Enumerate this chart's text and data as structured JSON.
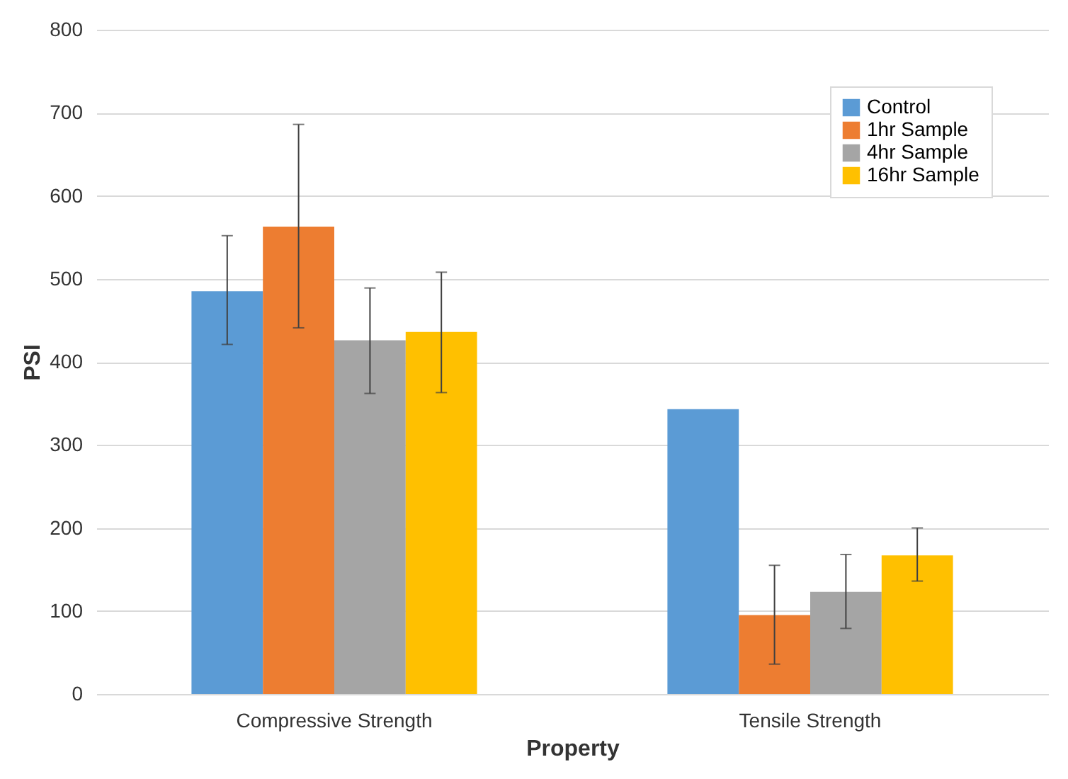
{
  "chart_data": {
    "type": "bar",
    "xlabel": "Property",
    "ylabel": "PSI",
    "categories": [
      "Compressive Strength",
      "Tensile Strength"
    ],
    "series": [
      {
        "name": "Control",
        "color": "#5b9bd5",
        "values": [
          485,
          343
        ],
        "errors": [
          [
            421,
            552
          ],
          null
        ]
      },
      {
        "name": "1hr Sample",
        "color": "#ed7d31",
        "values": [
          563,
          95
        ],
        "errors": [
          [
            441,
            686
          ],
          [
            36,
            155
          ]
        ]
      },
      {
        "name": "4hr Sample",
        "color": "#a5a5a5",
        "values": [
          426,
          123
        ],
        "errors": [
          [
            362,
            489
          ],
          [
            79,
            168
          ]
        ]
      },
      {
        "name": "16hr Sample",
        "color": "#ffc000",
        "values": [
          436,
          167
        ],
        "errors": [
          [
            363,
            508
          ],
          [
            136,
            200
          ]
        ]
      }
    ],
    "ylim": [
      0,
      800
    ],
    "yticks": [
      0,
      100,
      200,
      300,
      400,
      500,
      600,
      700,
      800
    ],
    "grid": "y",
    "legend": "top right"
  }
}
